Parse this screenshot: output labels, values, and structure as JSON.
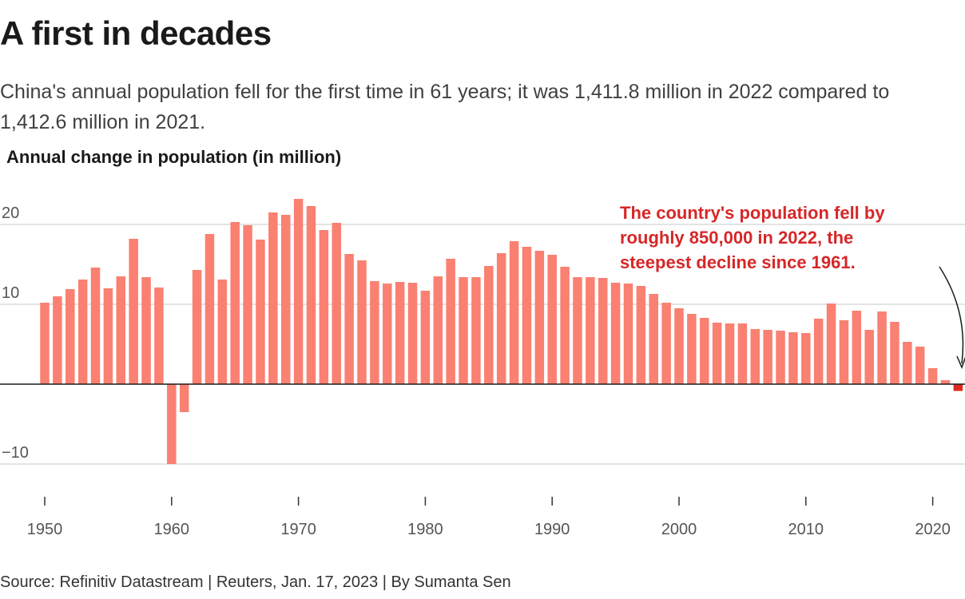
{
  "title": "A first in decades",
  "subtitle": "China's annual population fell for the first time in 61 years; it was 1,411.8 million in 2022 compared to 1,412.6 million in 2021.",
  "source": "Source: Refinitiv Datastream | Reuters, Jan. 17, 2023 | By Sumanta Sen",
  "colors": {
    "bar": "#fa8072",
    "highlight": "#e0281e",
    "annotation": "#d62728",
    "grid": "#c8c8c8",
    "baseline": "#1a1a1a"
  },
  "chart_data": {
    "type": "bar",
    "title": "A first in decades",
    "ylabel": "Annual change in population (in million)",
    "ylim": [
      -10,
      23.5
    ],
    "yticks": [
      20,
      10,
      -10
    ],
    "ytick_labels": [
      "20",
      "10",
      "−10"
    ],
    "xticks": [
      1950,
      1960,
      1970,
      1980,
      1990,
      2000,
      2010,
      2020
    ],
    "grid": true,
    "x": [
      1950,
      1951,
      1952,
      1953,
      1954,
      1955,
      1956,
      1957,
      1958,
      1959,
      1960,
      1961,
      1962,
      1963,
      1964,
      1965,
      1966,
      1967,
      1968,
      1969,
      1970,
      1971,
      1972,
      1973,
      1974,
      1975,
      1976,
      1977,
      1978,
      1979,
      1980,
      1981,
      1982,
      1983,
      1984,
      1985,
      1986,
      1987,
      1988,
      1989,
      1990,
      1991,
      1992,
      1993,
      1994,
      1995,
      1996,
      1997,
      1998,
      1999,
      2000,
      2001,
      2002,
      2003,
      2004,
      2005,
      2006,
      2007,
      2008,
      2009,
      2010,
      2011,
      2012,
      2013,
      2014,
      2015,
      2016,
      2017,
      2018,
      2019,
      2020,
      2021,
      2022
    ],
    "values": [
      10.2,
      11.0,
      11.9,
      13.1,
      14.6,
      12.0,
      13.5,
      18.2,
      13.4,
      12.1,
      -10.0,
      -3.5,
      14.3,
      18.8,
      13.1,
      20.3,
      19.9,
      18.1,
      21.5,
      21.2,
      23.2,
      22.3,
      19.3,
      20.2,
      16.3,
      15.5,
      12.9,
      12.6,
      12.8,
      12.7,
      11.7,
      13.5,
      15.7,
      13.4,
      13.4,
      14.8,
      16.4,
      17.9,
      17.2,
      16.7,
      16.2,
      14.7,
      13.4,
      13.4,
      13.3,
      12.7,
      12.6,
      12.3,
      11.3,
      10.2,
      9.5,
      8.8,
      8.3,
      7.7,
      7.6,
      7.6,
      6.9,
      6.8,
      6.7,
      6.5,
      6.4,
      8.2,
      10.1,
      8.0,
      9.2,
      6.8,
      9.1,
      7.8,
      5.3,
      4.7,
      2.0,
      0.5,
      -0.85
    ],
    "highlight_x": 2022,
    "annotation": {
      "lines": [
        "The country's population fell by",
        "roughly 850,000 in 2022, the",
        "steepest decline since 1961."
      ]
    }
  }
}
